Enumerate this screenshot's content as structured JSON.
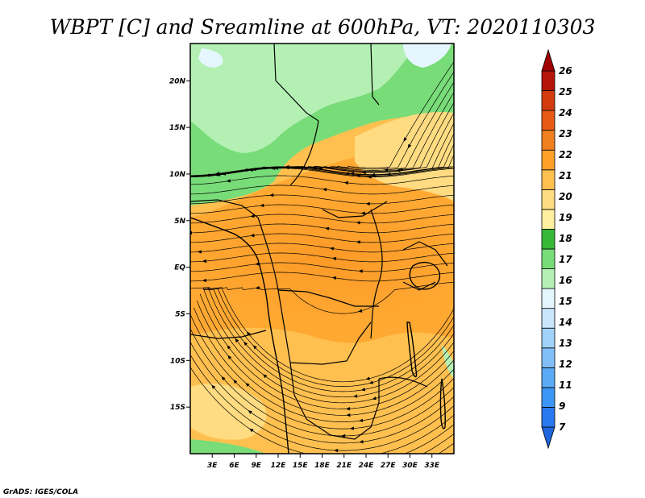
{
  "title": "WBPT [C] and Sreamline at 600hPa, VT: 2020110303",
  "credit": "GrADS: IGES/COLA",
  "map": {
    "lon_range": [
      0,
      36
    ],
    "lat_range": [
      -20,
      24
    ],
    "x_ticks": [
      "3E",
      "6E",
      "9E",
      "12E",
      "15E",
      "18E",
      "21E",
      "24E",
      "27E",
      "30E",
      "33E"
    ],
    "x_tick_values": [
      3,
      6,
      9,
      12,
      15,
      18,
      21,
      24,
      27,
      30,
      33
    ],
    "y_ticks": [
      "20N",
      "15N",
      "10N",
      "5N",
      "EQ",
      "5S",
      "10S",
      "15S"
    ],
    "y_tick_values": [
      20,
      15,
      10,
      5,
      0,
      -5,
      -10,
      -15
    ]
  },
  "colorbar": {
    "labels": [
      "26",
      "25",
      "24",
      "23",
      "22",
      "21",
      "20",
      "19",
      "18",
      "17",
      "16",
      "15",
      "14",
      "13",
      "12",
      "11",
      "9",
      "7"
    ],
    "colors": [
      "#ffffff",
      "#1e64dc",
      "#2878f0",
      "#3c96f5",
      "#5aaaf5",
      "#82bef8",
      "#a0d2fa",
      "#c8e6fc",
      "#e6f6ff",
      "#b4f0b4",
      "#78dc78",
      "#37b937",
      "#fff0a0",
      "#ffdc82",
      "#ffc050",
      "#ffa028",
      "#f08020",
      "#e65a14",
      "#d23c0f",
      "#b4140a",
      "#a00000"
    ]
  }
}
